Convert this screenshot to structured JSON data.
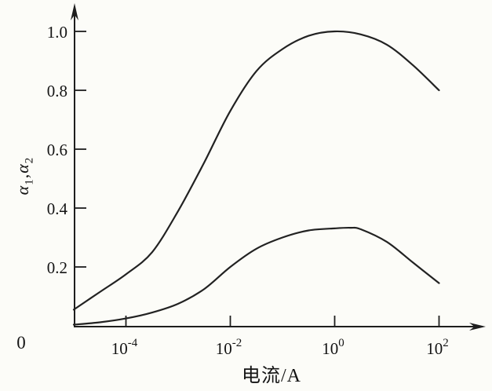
{
  "figure": {
    "background": "#fcfcf8",
    "ink_color": "#1e1e1e"
  },
  "chart_data": {
    "type": "line",
    "title": "",
    "xlabel": "电流/A",
    "ylabel": "α₁,α₂",
    "ylabel_parts": [
      {
        "text": "α",
        "italic": true,
        "sub": false
      },
      {
        "text": "1",
        "italic": false,
        "sub": true
      },
      {
        "text": ",",
        "italic": false,
        "sub": false
      },
      {
        "text": "α",
        "italic": true,
        "sub": false
      },
      {
        "text": "2",
        "italic": false,
        "sub": true
      }
    ],
    "origin_label": "0",
    "x_scale": "log10",
    "grid": false,
    "legend": "none",
    "x_range_log": [
      -5,
      2.85
    ],
    "y_range": [
      0,
      1.08
    ],
    "x_ticks": [
      {
        "base": "10",
        "exp": "-4",
        "log": -4
      },
      {
        "base": "10",
        "exp": "-2",
        "log": -2
      },
      {
        "base": "10",
        "exp": "0",
        "log": 0
      },
      {
        "base": "10",
        "exp": "2",
        "log": 2
      }
    ],
    "y_ticks": [
      {
        "label": "1.0",
        "value": 1.0
      },
      {
        "label": "0.8",
        "value": 0.8
      },
      {
        "label": "0.6",
        "value": 0.6
      },
      {
        "label": "0.4",
        "value": 0.4
      },
      {
        "label": "0.2",
        "value": 0.2
      }
    ],
    "series": [
      {
        "name": "α1",
        "points": [
          [
            -5.0,
            0.055
          ],
          [
            -4.5,
            0.115
          ],
          [
            -4.0,
            0.175
          ],
          [
            -3.5,
            0.25
          ],
          [
            -3.0,
            0.39
          ],
          [
            -2.5,
            0.555
          ],
          [
            -2.0,
            0.73
          ],
          [
            -1.5,
            0.865
          ],
          [
            -1.0,
            0.94
          ],
          [
            -0.5,
            0.985
          ],
          [
            0.0,
            1.0
          ],
          [
            0.5,
            0.99
          ],
          [
            1.0,
            0.955
          ],
          [
            1.5,
            0.885
          ],
          [
            2.0,
            0.8
          ]
        ]
      },
      {
        "name": "α2",
        "points": [
          [
            -5.0,
            0.004
          ],
          [
            -4.5,
            0.012
          ],
          [
            -4.0,
            0.025
          ],
          [
            -3.5,
            0.045
          ],
          [
            -3.0,
            0.075
          ],
          [
            -2.5,
            0.125
          ],
          [
            -2.0,
            0.2
          ],
          [
            -1.5,
            0.262
          ],
          [
            -1.0,
            0.3
          ],
          [
            -0.5,
            0.324
          ],
          [
            0.0,
            0.331
          ],
          [
            0.3,
            0.333
          ],
          [
            0.5,
            0.328
          ],
          [
            1.0,
            0.285
          ],
          [
            1.5,
            0.215
          ],
          [
            2.0,
            0.145
          ]
        ]
      }
    ]
  }
}
